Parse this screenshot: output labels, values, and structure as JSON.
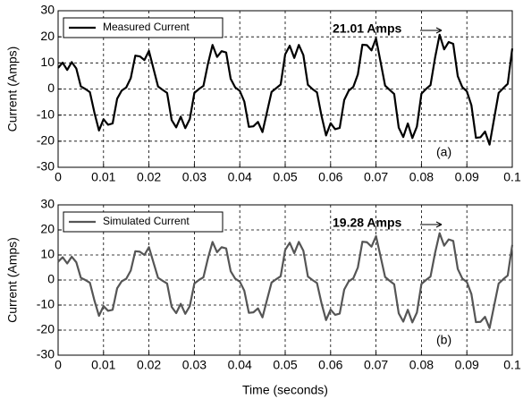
{
  "chart_data": [
    {
      "type": "line",
      "ylabel": "Current (Amps)",
      "annotation": "21.01 Amps",
      "panel_label": "(a)",
      "legend": "upper left",
      "grid": true,
      "xlim": [
        0,
        0.1
      ],
      "xticks": [
        0,
        0.01,
        0.02,
        0.03,
        0.04,
        0.05,
        0.06,
        0.07,
        0.08,
        0.09,
        0.1
      ],
      "ylim": [
        -30,
        30
      ],
      "yticks": [
        -30,
        -20,
        -10,
        0,
        10,
        20,
        30
      ],
      "x": [
        0,
        0.001,
        0.002,
        0.003,
        0.004,
        0.005,
        0.006,
        0.007,
        0.008,
        0.009,
        0.01,
        0.011,
        0.012,
        0.013,
        0.014,
        0.015,
        0.016,
        0.017,
        0.018,
        0.019,
        0.02,
        0.021,
        0.022,
        0.023,
        0.024,
        0.025,
        0.026,
        0.027,
        0.028,
        0.029,
        0.03,
        0.031,
        0.032,
        0.033,
        0.034,
        0.035,
        0.036,
        0.037,
        0.038,
        0.039,
        0.04,
        0.041,
        0.042,
        0.043,
        0.044,
        0.045,
        0.046,
        0.047,
        0.048,
        0.049,
        0.05,
        0.051,
        0.052,
        0.053,
        0.054,
        0.055,
        0.056,
        0.057,
        0.058,
        0.059,
        0.06,
        0.061,
        0.062,
        0.063,
        0.064,
        0.065,
        0.066,
        0.067,
        0.068,
        0.069,
        0.07,
        0.071,
        0.072,
        0.073,
        0.074,
        0.075,
        0.076,
        0.077,
        0.078,
        0.079,
        0.08,
        0.081,
        0.082,
        0.083,
        0.084,
        0.085,
        0.086,
        0.087,
        0.088,
        0.089,
        0.09,
        0.091,
        0.092,
        0.093,
        0.094,
        0.095,
        0.096,
        0.097,
        0.098,
        0.099,
        0.1
      ],
      "series": [
        {
          "name": "Measured Current",
          "color": "#000000",
          "values": [
            8.1,
            10.1,
            7.3,
            10.3,
            7.9,
            1.0,
            0,
            -1.2,
            -9.1,
            -15.9,
            -11.6,
            -13.7,
            -13.2,
            -3.7,
            -0.6,
            0.6,
            4.2,
            12.8,
            12.5,
            11.1,
            14.6,
            7.8,
            1.0,
            -0.3,
            -1.5,
            -11.9,
            -14.7,
            -10.6,
            -15.0,
            -11.5,
            -1.5,
            0,
            1.2,
            9.7,
            16.9,
            12.3,
            14.5,
            14.0,
            3.9,
            0.6,
            -0.7,
            -4.8,
            -14.5,
            -14.3,
            -12.6,
            -16.5,
            -8.8,
            -1.1,
            0.3,
            1.7,
            13.3,
            16.6,
            11.9,
            16.9,
            13.0,
            1.6,
            0,
            -1.3,
            -10.3,
            -17.8,
            -13.1,
            -15.4,
            -14.9,
            -4.2,
            -0.6,
            0.8,
            5.6,
            17.0,
            16.8,
            14.8,
            19.4,
            10.4,
            1.3,
            -0.3,
            -1.9,
            -14.8,
            -18.4,
            -13.2,
            -18.8,
            -14.4,
            -1.8,
            0,
            1.5,
            12.0,
            20.8,
            15.2,
            18.0,
            17.3,
            4.9,
            0.7,
            -0.9,
            -6.2,
            -18.7,
            -18.5,
            -16.3,
            -21.3,
            -11.4,
            -1.5,
            0.3,
            2.0,
            15.5
          ]
        }
      ]
    },
    {
      "type": "line",
      "xlabel": "Time (seconds)",
      "ylabel": "Current (Amps)",
      "annotation": "19.28 Amps",
      "panel_label": "(b)",
      "legend": "upper left",
      "grid": true,
      "xlim": [
        0,
        0.1
      ],
      "xticks": [
        0,
        0.01,
        0.02,
        0.03,
        0.04,
        0.05,
        0.06,
        0.07,
        0.08,
        0.09,
        0.1
      ],
      "ylim": [
        -30,
        30
      ],
      "yticks": [
        -30,
        -20,
        -10,
        0,
        10,
        20,
        30
      ],
      "x": [
        0,
        0.001,
        0.002,
        0.003,
        0.004,
        0.005,
        0.006,
        0.007,
        0.008,
        0.009,
        0.01,
        0.011,
        0.012,
        0.013,
        0.014,
        0.015,
        0.016,
        0.017,
        0.018,
        0.019,
        0.02,
        0.021,
        0.022,
        0.023,
        0.024,
        0.025,
        0.026,
        0.027,
        0.028,
        0.029,
        0.03,
        0.031,
        0.032,
        0.033,
        0.034,
        0.035,
        0.036,
        0.037,
        0.038,
        0.039,
        0.04,
        0.041,
        0.042,
        0.043,
        0.044,
        0.045,
        0.046,
        0.047,
        0.048,
        0.049,
        0.05,
        0.051,
        0.052,
        0.053,
        0.054,
        0.055,
        0.056,
        0.057,
        0.058,
        0.059,
        0.06,
        0.061,
        0.062,
        0.063,
        0.064,
        0.065,
        0.066,
        0.067,
        0.068,
        0.069,
        0.07,
        0.071,
        0.072,
        0.073,
        0.074,
        0.075,
        0.076,
        0.077,
        0.078,
        0.079,
        0.08,
        0.081,
        0.082,
        0.083,
        0.084,
        0.085,
        0.086,
        0.087,
        0.088,
        0.089,
        0.09,
        0.091,
        0.092,
        0.093,
        0.094,
        0.095,
        0.096,
        0.097,
        0.098,
        0.099,
        0.1
      ],
      "series": [
        {
          "name": "Simulated Current",
          "color": "#555555",
          "values": [
            7.3,
            9.1,
            6.6,
            9.3,
            7.1,
            0.9,
            0,
            -1.1,
            -8.2,
            -14.3,
            -10.4,
            -12.3,
            -11.9,
            -3.3,
            -0.5,
            0.5,
            3.8,
            11.5,
            11.3,
            10.0,
            13.1,
            7.0,
            0.9,
            -0.3,
            -1.4,
            -10.7,
            -13.2,
            -9.5,
            -13.5,
            -10.4,
            -1.4,
            0,
            1.1,
            8.7,
            15.2,
            11.1,
            13.1,
            12.6,
            3.5,
            0.5,
            -0.6,
            -4.3,
            -13.1,
            -12.9,
            -11.3,
            -14.9,
            -7.9,
            -1.0,
            0.3,
            1.5,
            12.0,
            14.9,
            10.7,
            15.2,
            11.7,
            1.4,
            0,
            -1.2,
            -9.3,
            -16.0,
            -11.8,
            -13.9,
            -13.4,
            -3.8,
            -0.5,
            0.7,
            5.0,
            15.3,
            15.1,
            13.3,
            17.5,
            9.4,
            1.2,
            -0.3,
            -1.7,
            -13.3,
            -16.6,
            -11.9,
            -16.9,
            -13.0,
            -1.6,
            0,
            1.4,
            10.8,
            18.7,
            13.7,
            16.2,
            15.6,
            4.4,
            0.6,
            -0.8,
            -5.6,
            -16.8,
            -16.7,
            -14.7,
            -19.2,
            -10.3,
            -1.4,
            0.3,
            1.8,
            14.0
          ]
        }
      ]
    }
  ]
}
